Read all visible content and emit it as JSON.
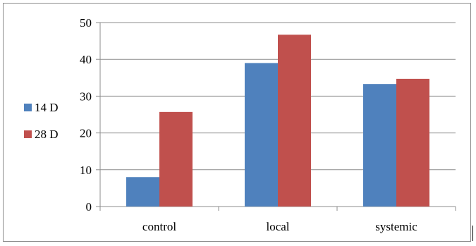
{
  "chart_data": {
    "type": "bar",
    "title": "",
    "xlabel": "",
    "ylabel": "",
    "categories": [
      "control",
      "local",
      "systemic"
    ],
    "series": [
      {
        "name": "14 D",
        "color": "#4f81bd",
        "values": [
          8,
          39,
          33.3
        ]
      },
      {
        "name": "28 D",
        "color": "#c0504d",
        "values": [
          25.7,
          46.7,
          34.7
        ]
      }
    ],
    "ylim": [
      0,
      50
    ],
    "yticks": [
      0,
      10,
      20,
      30,
      40,
      50
    ],
    "grid": true,
    "legend_position": "left"
  }
}
